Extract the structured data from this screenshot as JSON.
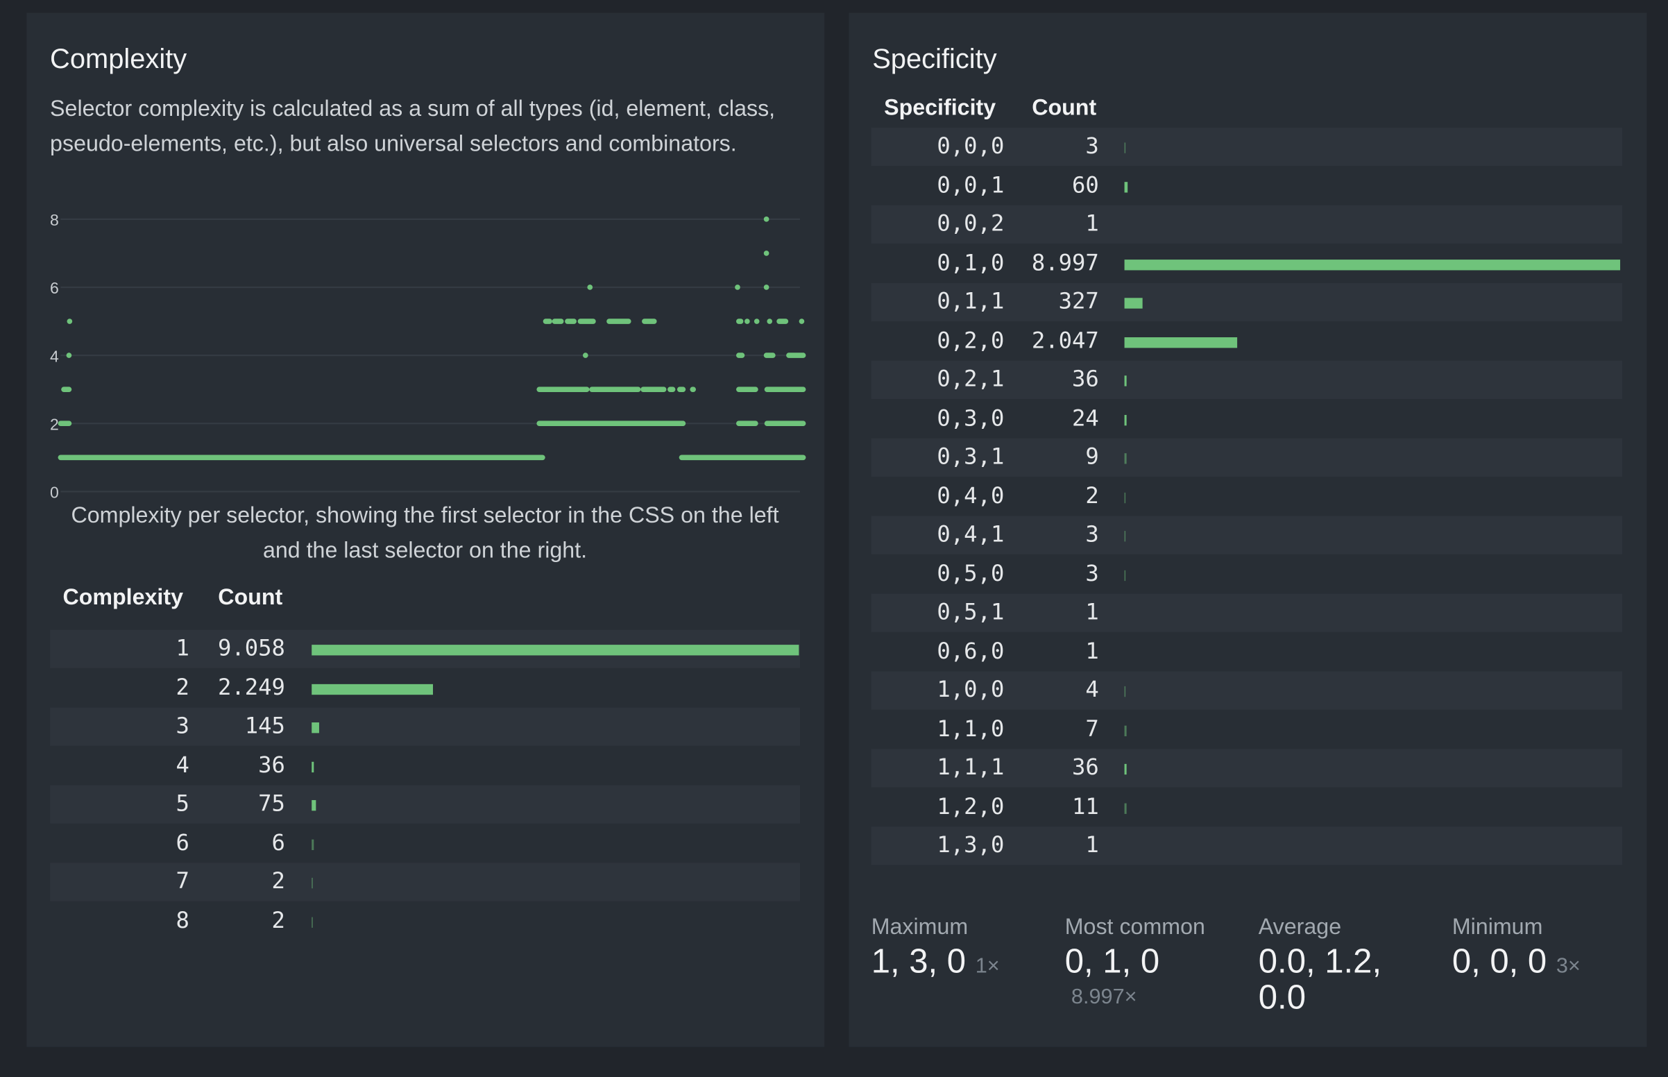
{
  "complexity": {
    "title": "Complexity",
    "description": "Selector complexity is calculated as a sum of all types (id, element, class, pseudo-elements, etc.), but also universal selectors and combinators.",
    "caption": "Complexity per selector, showing the first selector in the CSS on the left and the last selector on the right.",
    "table": {
      "headers": [
        "Complexity",
        "Count"
      ],
      "rows": [
        {
          "k": "1",
          "v": "9.058",
          "n": 9058
        },
        {
          "k": "2",
          "v": "2.249",
          "n": 2249
        },
        {
          "k": "3",
          "v": "145",
          "n": 145
        },
        {
          "k": "4",
          "v": "36",
          "n": 36
        },
        {
          "k": "5",
          "v": "75",
          "n": 75
        },
        {
          "k": "6",
          "v": "6",
          "n": 6
        },
        {
          "k": "7",
          "v": "2",
          "n": 2
        },
        {
          "k": "8",
          "v": "2",
          "n": 2
        }
      ]
    }
  },
  "chart_data": {
    "type": "scatter",
    "title": "",
    "xlabel": "",
    "ylabel": "",
    "xlim": [
      0,
      11573
    ],
    "ylim": [
      0,
      8
    ],
    "yticks": [
      "0",
      "2",
      "4",
      "6",
      "8"
    ],
    "grid": true,
    "color": "#6fc37b",
    "runs": [
      {
        "y": 1,
        "ranges": [
          [
            0,
            7510
          ],
          [
            9680,
            11573
          ]
        ]
      },
      {
        "y": 2,
        "ranges": [
          [
            0,
            130
          ],
          [
            7460,
            9700
          ],
          [
            10570,
            10830
          ],
          [
            11010,
            11573
          ]
        ]
      },
      {
        "y": 3,
        "ranges": [
          [
            50,
            130
          ],
          [
            7460,
            8200
          ],
          [
            8280,
            9000
          ],
          [
            9080,
            9400
          ],
          [
            9500,
            9540
          ],
          [
            9650,
            9700
          ],
          [
            9850,
            9860
          ],
          [
            10570,
            10830
          ],
          [
            11010,
            11573
          ]
        ]
      },
      {
        "y": 4,
        "ranges": [
          [
            130,
            130
          ],
          [
            8180,
            8180
          ],
          [
            10570,
            10620
          ],
          [
            11000,
            11100
          ],
          [
            11350,
            11573
          ]
        ]
      },
      {
        "y": 5,
        "ranges": [
          [
            140,
            140
          ],
          [
            7560,
            7620
          ],
          [
            7700,
            7800
          ],
          [
            7900,
            8000
          ],
          [
            8100,
            8300
          ],
          [
            8550,
            8850
          ],
          [
            9100,
            9250
          ],
          [
            10570,
            10600
          ],
          [
            10700,
            10700
          ],
          [
            10850,
            10850
          ],
          [
            11050,
            11050
          ],
          [
            11200,
            11300
          ],
          [
            11550,
            11550
          ]
        ]
      },
      {
        "y": 6,
        "ranges": [
          [
            8250,
            8250
          ],
          [
            10550,
            10550
          ],
          [
            11000,
            11000
          ]
        ]
      },
      {
        "y": 7,
        "ranges": [
          [
            11000,
            11000
          ]
        ]
      },
      {
        "y": 8,
        "ranges": [
          [
            11000,
            11000
          ]
        ]
      }
    ]
  },
  "specificity": {
    "title": "Specificity",
    "table": {
      "headers": [
        "Specificity",
        "Count"
      ],
      "rows": [
        {
          "k": "0,0,0",
          "v": "3",
          "n": 3
        },
        {
          "k": "0,0,1",
          "v": "60",
          "n": 60
        },
        {
          "k": "0,0,2",
          "v": "1",
          "n": 1
        },
        {
          "k": "0,1,0",
          "v": "8.997",
          "n": 8997
        },
        {
          "k": "0,1,1",
          "v": "327",
          "n": 327
        },
        {
          "k": "0,2,0",
          "v": "2.047",
          "n": 2047
        },
        {
          "k": "0,2,1",
          "v": "36",
          "n": 36
        },
        {
          "k": "0,3,0",
          "v": "24",
          "n": 24
        },
        {
          "k": "0,3,1",
          "v": "9",
          "n": 9
        },
        {
          "k": "0,4,0",
          "v": "2",
          "n": 2
        },
        {
          "k": "0,4,1",
          "v": "3",
          "n": 3
        },
        {
          "k": "0,5,0",
          "v": "3",
          "n": 3
        },
        {
          "k": "0,5,1",
          "v": "1",
          "n": 1
        },
        {
          "k": "0,6,0",
          "v": "1",
          "n": 1
        },
        {
          "k": "1,0,0",
          "v": "4",
          "n": 4
        },
        {
          "k": "1,1,0",
          "v": "7",
          "n": 7
        },
        {
          "k": "1,1,1",
          "v": "36",
          "n": 36
        },
        {
          "k": "1,2,0",
          "v": "11",
          "n": 11
        },
        {
          "k": "1,3,0",
          "v": "1",
          "n": 1
        }
      ]
    },
    "stats": [
      {
        "label": "Maximum",
        "value": "1, 3, 0",
        "count": "1×"
      },
      {
        "label": "Most common",
        "value": "0, 1, 0",
        "count": "8.997×"
      },
      {
        "label": "Average",
        "value": "0.0, 1.2, 0.0",
        "count": ""
      },
      {
        "label": "Minimum",
        "value": "0, 0, 0",
        "count": "3×"
      }
    ]
  }
}
